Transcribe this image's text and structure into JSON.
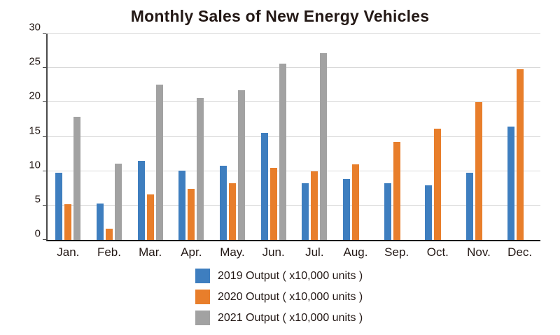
{
  "title": "Monthly Sales of New Energy Vehicles",
  "chart_data": {
    "type": "bar",
    "title": "Monthly Sales of New Energy Vehicles",
    "categories": [
      "Jan.",
      "Feb.",
      "Mar.",
      "Apr.",
      "May.",
      "Jun.",
      "Jul.",
      "Aug.",
      "Sep.",
      "Oct.",
      "Nov.",
      "Dec."
    ],
    "series": [
      {
        "name": "2019 Output ( x10,000 units )",
        "color": "#3e7ebf",
        "values": [
          9.8,
          5.3,
          11.5,
          10.1,
          10.8,
          15.6,
          8.2,
          8.8,
          8.2,
          7.9,
          9.8,
          16.5
        ]
      },
      {
        "name": "2020 Output ( x10,000 units )",
        "color": "#e87e2b",
        "values": [
          5.2,
          1.6,
          6.6,
          7.4,
          8.2,
          10.5,
          10.0,
          11.0,
          14.2,
          16.2,
          20.0,
          24.8
        ]
      },
      {
        "name": "2021 Output ( x10,000 units )",
        "color": "#a2a2a2",
        "values": [
          17.9,
          11.1,
          22.6,
          20.6,
          21.8,
          25.6,
          27.2,
          null,
          null,
          null,
          null,
          null
        ]
      }
    ],
    "xlabel": "",
    "ylabel": "",
    "ylim": [
      0,
      30
    ],
    "yticks": [
      0,
      5,
      10,
      15,
      20,
      25,
      30
    ],
    "grid": true,
    "legend_position": "bottom"
  },
  "colors": {
    "grid": "#d9d9d9",
    "axis": "#4a4a4a",
    "text": "#231815",
    "background": "#ffffff"
  }
}
